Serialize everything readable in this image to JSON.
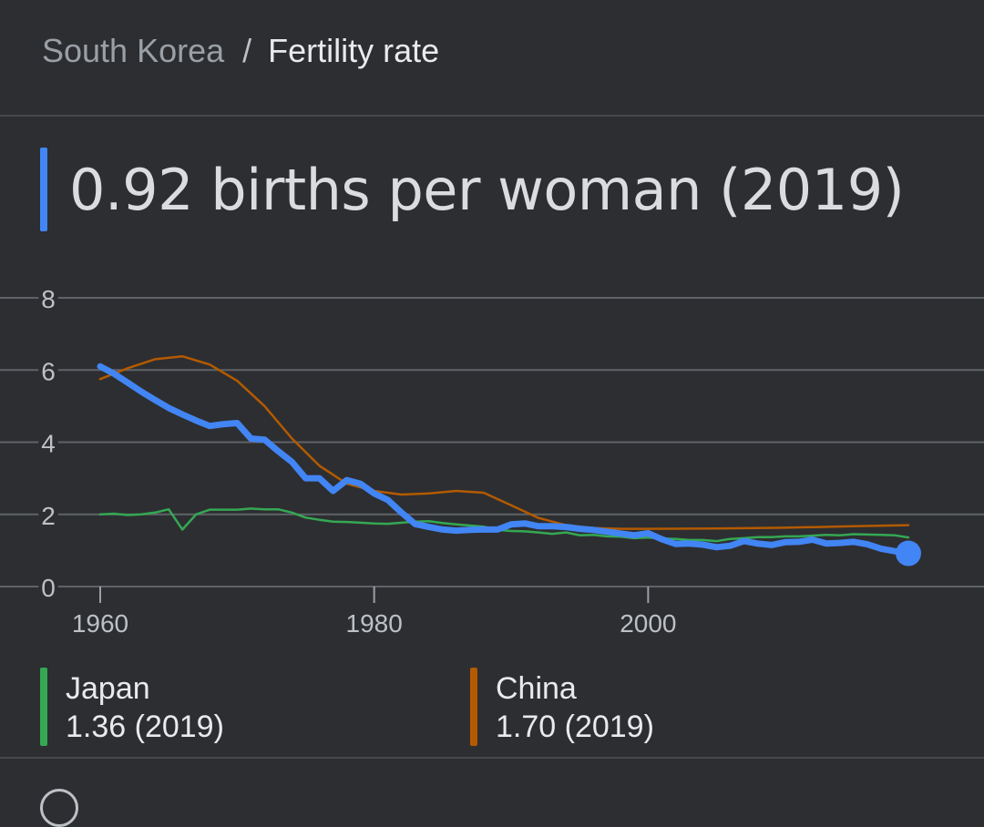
{
  "breadcrumb": {
    "parent": "South Korea",
    "separator": "/",
    "current": "Fertility rate"
  },
  "headline": "0.92 births per woman (2019)",
  "colors": {
    "background": "#2d2e31",
    "grid": "#5f6368",
    "south_korea": "#4285f4",
    "japan": "#34a853",
    "china": "#b35a00"
  },
  "legend": [
    {
      "name": "Japan",
      "value": "1.36 (2019)",
      "color": "#34a853"
    },
    {
      "name": "China",
      "value": "1.70 (2019)",
      "color": "#b35a00"
    }
  ],
  "chart_data": {
    "type": "line",
    "ylim": [
      0,
      8
    ],
    "yticks": [
      0,
      2,
      4,
      6,
      8
    ],
    "xlim": [
      1960,
      2019
    ],
    "xticks": [
      1960,
      1980,
      2000
    ],
    "grid": true,
    "series": [
      {
        "name": "South Korea",
        "color": "#4285f4",
        "points": [
          [
            1960,
            6.1
          ],
          [
            1961,
            5.9
          ],
          [
            1962,
            5.65
          ],
          [
            1963,
            5.4
          ],
          [
            1964,
            5.17
          ],
          [
            1965,
            4.95
          ],
          [
            1966,
            4.77
          ],
          [
            1967,
            4.6
          ],
          [
            1968,
            4.45
          ],
          [
            1969,
            4.5
          ],
          [
            1970,
            4.53
          ],
          [
            1971,
            4.1
          ],
          [
            1972,
            4.07
          ],
          [
            1973,
            3.75
          ],
          [
            1974,
            3.45
          ],
          [
            1975,
            3.0
          ],
          [
            1976,
            3.0
          ],
          [
            1977,
            2.65
          ],
          [
            1978,
            2.95
          ],
          [
            1979,
            2.85
          ],
          [
            1980,
            2.58
          ],
          [
            1981,
            2.4
          ],
          [
            1982,
            2.05
          ],
          [
            1983,
            1.73
          ],
          [
            1984,
            1.65
          ],
          [
            1985,
            1.58
          ],
          [
            1986,
            1.55
          ],
          [
            1987,
            1.57
          ],
          [
            1988,
            1.58
          ],
          [
            1989,
            1.58
          ],
          [
            1990,
            1.72
          ],
          [
            1991,
            1.75
          ],
          [
            1992,
            1.67
          ],
          [
            1993,
            1.67
          ],
          [
            1994,
            1.65
          ],
          [
            1995,
            1.6
          ],
          [
            1996,
            1.57
          ],
          [
            1997,
            1.52
          ],
          [
            1998,
            1.47
          ],
          [
            1999,
            1.42
          ],
          [
            2000,
            1.48
          ],
          [
            2001,
            1.31
          ],
          [
            2002,
            1.18
          ],
          [
            2003,
            1.19
          ],
          [
            2004,
            1.16
          ],
          [
            2005,
            1.09
          ],
          [
            2006,
            1.13
          ],
          [
            2007,
            1.26
          ],
          [
            2008,
            1.19
          ],
          [
            2009,
            1.15
          ],
          [
            2010,
            1.23
          ],
          [
            2011,
            1.24
          ],
          [
            2012,
            1.3
          ],
          [
            2013,
            1.19
          ],
          [
            2014,
            1.21
          ],
          [
            2015,
            1.24
          ],
          [
            2016,
            1.17
          ],
          [
            2017,
            1.05
          ],
          [
            2018,
            0.98
          ],
          [
            2019,
            0.92
          ]
        ]
      },
      {
        "name": "Japan",
        "color": "#34a853",
        "points": [
          [
            1960,
            2.0
          ],
          [
            1961,
            2.02
          ],
          [
            1962,
            1.98
          ],
          [
            1963,
            2.0
          ],
          [
            1964,
            2.05
          ],
          [
            1965,
            2.14
          ],
          [
            1966,
            1.58
          ],
          [
            1967,
            2.0
          ],
          [
            1968,
            2.13
          ],
          [
            1969,
            2.13
          ],
          [
            1970,
            2.13
          ],
          [
            1971,
            2.16
          ],
          [
            1972,
            2.14
          ],
          [
            1973,
            2.14
          ],
          [
            1974,
            2.05
          ],
          [
            1975,
            1.91
          ],
          [
            1976,
            1.85
          ],
          [
            1977,
            1.8
          ],
          [
            1978,
            1.79
          ],
          [
            1979,
            1.77
          ],
          [
            1980,
            1.75
          ],
          [
            1981,
            1.74
          ],
          [
            1982,
            1.77
          ],
          [
            1983,
            1.8
          ],
          [
            1984,
            1.81
          ],
          [
            1985,
            1.76
          ],
          [
            1986,
            1.72
          ],
          [
            1987,
            1.69
          ],
          [
            1988,
            1.66
          ],
          [
            1989,
            1.57
          ],
          [
            1990,
            1.54
          ],
          [
            1991,
            1.53
          ],
          [
            1992,
            1.5
          ],
          [
            1993,
            1.46
          ],
          [
            1994,
            1.5
          ],
          [
            1995,
            1.42
          ],
          [
            1996,
            1.43
          ],
          [
            1997,
            1.39
          ],
          [
            1998,
            1.38
          ],
          [
            1999,
            1.34
          ],
          [
            2000,
            1.36
          ],
          [
            2001,
            1.33
          ],
          [
            2002,
            1.32
          ],
          [
            2003,
            1.29
          ],
          [
            2004,
            1.29
          ],
          [
            2005,
            1.26
          ],
          [
            2006,
            1.32
          ],
          [
            2007,
            1.34
          ],
          [
            2008,
            1.37
          ],
          [
            2009,
            1.37
          ],
          [
            2010,
            1.39
          ],
          [
            2011,
            1.39
          ],
          [
            2012,
            1.41
          ],
          [
            2013,
            1.43
          ],
          [
            2014,
            1.42
          ],
          [
            2015,
            1.45
          ],
          [
            2016,
            1.44
          ],
          [
            2017,
            1.43
          ],
          [
            2018,
            1.42
          ],
          [
            2019,
            1.36
          ]
        ]
      },
      {
        "name": "China",
        "color": "#b35a00",
        "points": [
          [
            1960,
            5.75
          ],
          [
            1962,
            6.05
          ],
          [
            1964,
            6.3
          ],
          [
            1966,
            6.38
          ],
          [
            1968,
            6.15
          ],
          [
            1970,
            5.7
          ],
          [
            1972,
            5.0
          ],
          [
            1974,
            4.1
          ],
          [
            1976,
            3.35
          ],
          [
            1978,
            2.85
          ],
          [
            1980,
            2.65
          ],
          [
            1982,
            2.55
          ],
          [
            1984,
            2.58
          ],
          [
            1986,
            2.65
          ],
          [
            1988,
            2.6
          ],
          [
            1990,
            2.25
          ],
          [
            1992,
            1.9
          ],
          [
            1994,
            1.7
          ],
          [
            1996,
            1.62
          ],
          [
            1998,
            1.6
          ],
          [
            2000,
            1.6
          ],
          [
            2005,
            1.61
          ],
          [
            2010,
            1.63
          ],
          [
            2015,
            1.67
          ],
          [
            2019,
            1.7
          ]
        ]
      }
    ]
  }
}
